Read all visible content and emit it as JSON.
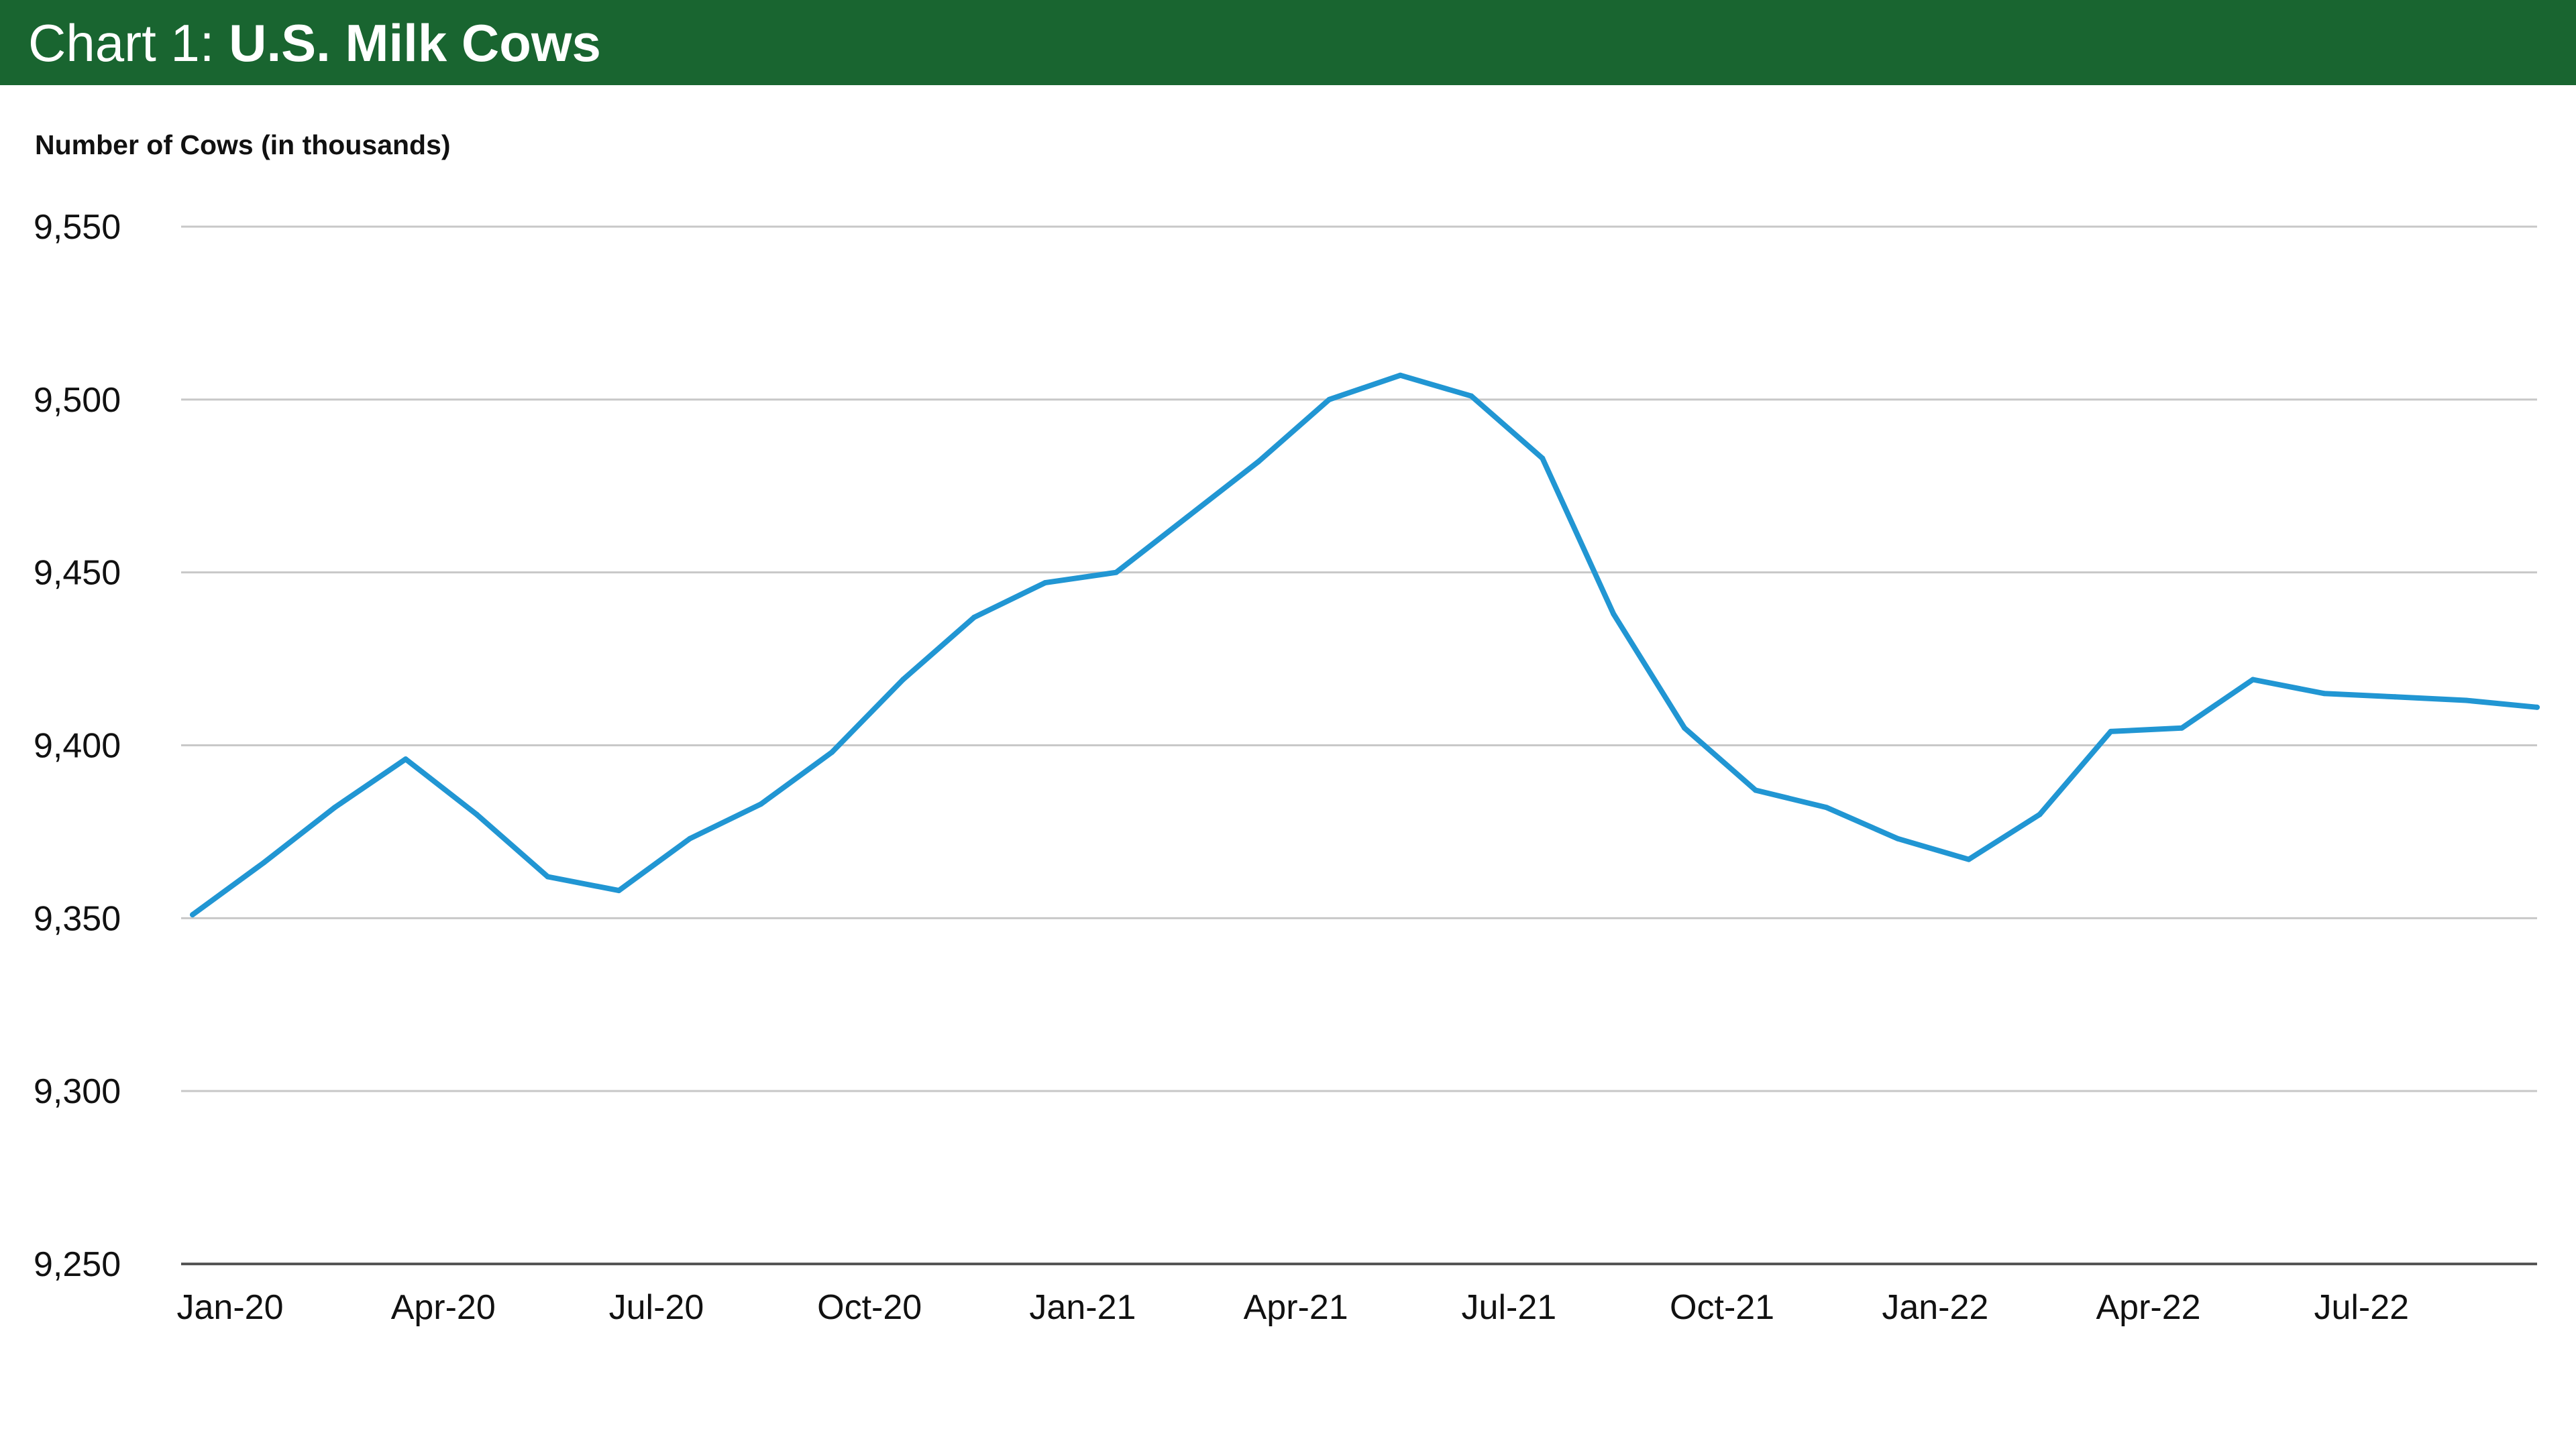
{
  "header": {
    "title_prefix": "Chart 1: ",
    "title_main": "U.S. Milk Cows"
  },
  "colors": {
    "header_bg": "#196530",
    "line": "#2196d3",
    "grid": "#c8c8c8",
    "axis": "#555555",
    "text": "#111111"
  },
  "chart_data": {
    "type": "line",
    "ylabel": "Number of Cows (in thousands)",
    "ylim": [
      9250,
      9550
    ],
    "yticks": [
      9250,
      9300,
      9350,
      9400,
      9450,
      9500,
      9550
    ],
    "ytick_labels": [
      "9,250",
      "9,300",
      "9,350",
      "9,400",
      "9,450",
      "9,500",
      "9,550"
    ],
    "grid": "horizontal",
    "x_tick_labels": [
      "Jan-20",
      "Apr-20",
      "Jul-20",
      "Oct-20",
      "Jan-21",
      "Apr-21",
      "Jul-21",
      "Oct-21",
      "Jan-22",
      "Apr-22",
      "Jul-22"
    ],
    "x": [
      "Jan-20",
      "Feb-20",
      "Mar-20",
      "Apr-20",
      "May-20",
      "Jun-20",
      "Jul-20",
      "Aug-20",
      "Sep-20",
      "Oct-20",
      "Nov-20",
      "Dec-20",
      "Jan-21",
      "Feb-21",
      "Mar-21",
      "Apr-21",
      "May-21",
      "Jun-21",
      "Jul-21",
      "Aug-21",
      "Sep-21",
      "Oct-21",
      "Nov-21",
      "Dec-21",
      "Jan-22",
      "Feb-22",
      "Mar-22",
      "Apr-22",
      "May-22",
      "Jun-22",
      "Jul-22",
      "Aug-22",
      "Sep-22",
      "Oct-22"
    ],
    "series": [
      {
        "values": [
          9351,
          9366,
          9382,
          9396,
          9380,
          9362,
          9358,
          9373,
          9383,
          9398,
          9419,
          9437,
          9447,
          9450,
          9466,
          9482,
          9500,
          9507,
          9501,
          9483,
          9438,
          9405,
          9387,
          9382,
          9373,
          9367,
          9380,
          9404,
          9405,
          9419,
          9415,
          9414,
          9413,
          9411
        ]
      }
    ]
  }
}
